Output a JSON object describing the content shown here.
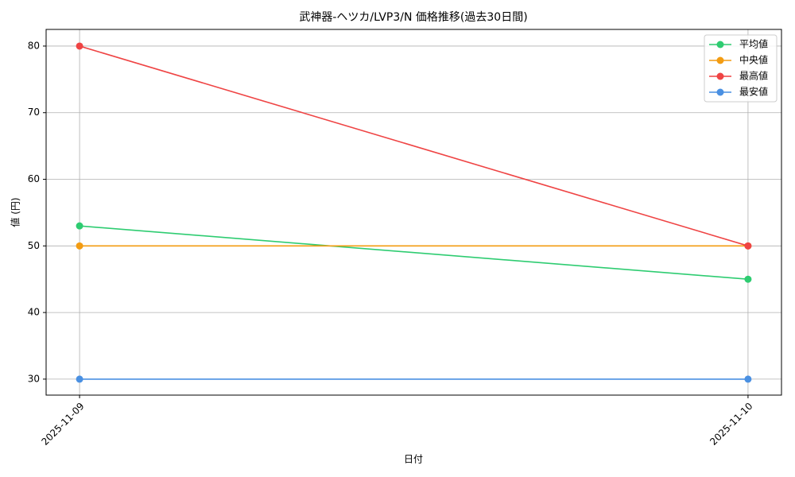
{
  "chart_data": {
    "type": "line",
    "title": "武神器-ヘツカ/LVP3/N 価格推移(過去30日間)",
    "x_label": "日付",
    "y_label": "値 (円)",
    "categories": [
      "2025-11-09",
      "2025-11-10"
    ],
    "series": [
      {
        "name": "平均値",
        "color": "#2ecc71",
        "values": [
          53,
          45
        ]
      },
      {
        "name": "中央値",
        "color": "#f39c12",
        "values": [
          50,
          50
        ]
      },
      {
        "name": "最高値",
        "color": "#ef4444",
        "values": [
          80,
          50
        ]
      },
      {
        "name": "最安値",
        "color": "#4a90e2",
        "values": [
          30,
          30
        ]
      }
    ],
    "ylim": [
      27.6,
      82.5
    ],
    "yticks": [
      30,
      40,
      50,
      60,
      70,
      80
    ],
    "grid": true,
    "legend": "upper right"
  }
}
